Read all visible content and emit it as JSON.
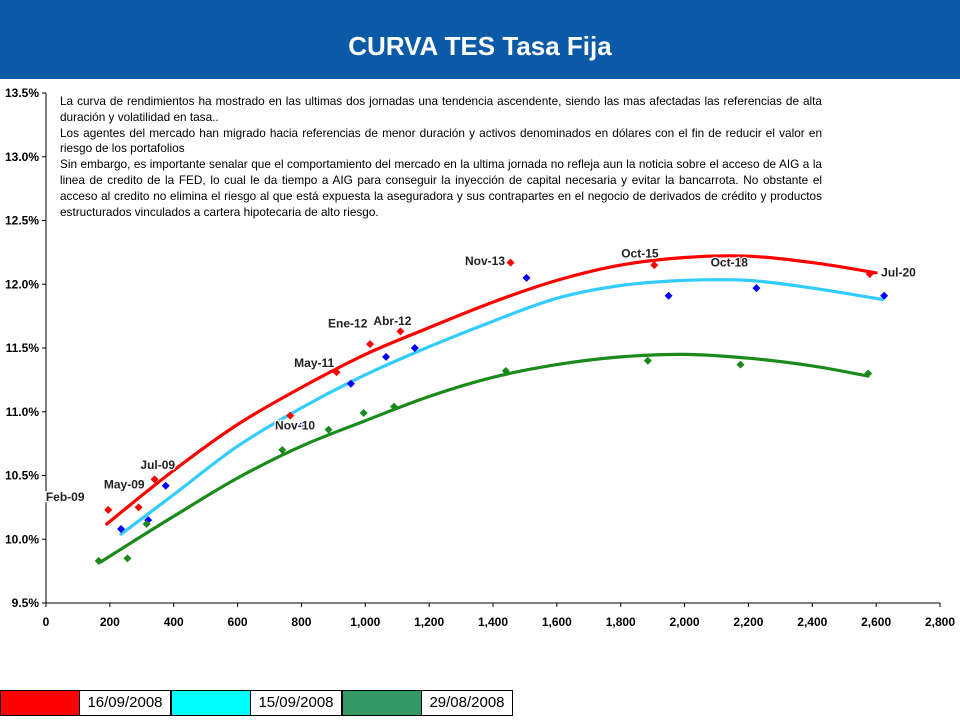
{
  "header": {
    "title": "CURVA TES Tasa Fija"
  },
  "note": {
    "paragraphs": [
      "La curva de rendimientos ha mostrado en las ultimas dos jornadas una tendencia ascendente, siendo las mas afectadas las referencias de alta duración y volatilidad en tasa..",
      "Los agentes del mercado han migrado hacia referencias de menor duración y activos denominados en dólares con el fin de reducir el valor en riesgo de los portafolios",
      "Sin embargo, es importante senalar que el comportamiento del mercado en la ultima jornada no refleja aun la noticia sobre el acceso de AIG a la linea de credito de la FED, lo cual le da tiempo a AIG para conseguir la inyección de capital necesaria y evitar la bancarrota. No obstante el acceso al credito no elimina el riesgo al que está expuesta la aseguradora y sus contrapartes en el negocio de derivados de crédito y productos estructurados vinculados a cartera hipotecaria de alto riesgo."
    ]
  },
  "legend": [
    {
      "label": "16/09/2008",
      "color": "#ff0000"
    },
    {
      "label": "15/09/2008",
      "color": "#00ffff"
    },
    {
      "label": "29/08/2008",
      "color": "#339966"
    }
  ],
  "chart_data": {
    "type": "scatter",
    "xlim": [
      0,
      2800
    ],
    "ylim": [
      9.5,
      13.5
    ],
    "x_ticks": [
      "0",
      "200",
      "400",
      "600",
      "800",
      "1,000",
      "1,200",
      "1,400",
      "1,600",
      "1,800",
      "2,000",
      "2,200",
      "2,400",
      "2,600",
      "2,800"
    ],
    "y_ticks": [
      "9.5%",
      "10.0%",
      "10.5%",
      "11.0%",
      "11.5%",
      "12.0%",
      "12.5%",
      "13.0%",
      "13.5%"
    ],
    "grid": false,
    "series": [
      {
        "name": "16/09/2008",
        "color": "#ff0000",
        "marker_color": "#ff0000",
        "x": [
          195,
          290,
          340,
          765,
          910,
          1015,
          1110,
          1455,
          1905,
          2175,
          2580
        ],
        "y": [
          10.23,
          10.25,
          10.47,
          10.97,
          11.31,
          11.53,
          11.63,
          12.17,
          12.15,
          12.2,
          12.08
        ],
        "curve": {
          "x": [
            190,
            400,
            600,
            800,
            1000,
            1200,
            1400,
            1600,
            1800,
            2000,
            2200,
            2400,
            2600
          ],
          "y": [
            10.12,
            10.54,
            10.9,
            11.19,
            11.45,
            11.66,
            11.86,
            12.03,
            12.15,
            12.21,
            12.22,
            12.17,
            12.09
          ]
        }
      },
      {
        "name": "15/09/2008",
        "color": "#33ccff",
        "marker_color": "#0000ff",
        "x": [
          235,
          320,
          375,
          805,
          955,
          1065,
          1155,
          1505,
          1950,
          2225,
          2625
        ],
        "y": [
          10.08,
          10.15,
          10.42,
          10.9,
          11.22,
          11.43,
          11.5,
          12.05,
          11.91,
          11.97,
          11.91
        ],
        "curve": {
          "x": [
            235,
            400,
            600,
            800,
            1000,
            1200,
            1400,
            1600,
            1800,
            2000,
            2200,
            2400,
            2620
          ],
          "y": [
            10.04,
            10.35,
            10.73,
            11.03,
            11.29,
            11.51,
            11.71,
            11.89,
            11.99,
            12.03,
            12.03,
            11.97,
            11.88
          ]
        }
      },
      {
        "name": "29/08/2008",
        "color": "#1a8a1a",
        "marker_color": "#1a8a1a",
        "x": [
          165,
          255,
          315,
          740,
          885,
          995,
          1090,
          1440,
          1885,
          2175,
          2575
        ],
        "y": [
          9.83,
          9.85,
          10.12,
          10.7,
          10.86,
          10.99,
          11.04,
          11.32,
          11.4,
          11.37,
          11.3
        ],
        "curve": {
          "x": [
            170,
            400,
            600,
            800,
            1000,
            1200,
            1400,
            1600,
            1800,
            2000,
            2200,
            2400,
            2575
          ],
          "y": [
            9.82,
            10.18,
            10.48,
            10.73,
            10.93,
            11.12,
            11.27,
            11.37,
            11.43,
            11.45,
            11.42,
            11.36,
            11.28
          ]
        }
      }
    ],
    "annotations": [
      {
        "text": "Feb-09",
        "x": 60,
        "y": 10.3
      },
      {
        "text": "May-09",
        "x": 245,
        "y": 10.4
      },
      {
        "text": "Jul-09",
        "x": 350,
        "y": 10.55
      },
      {
        "text": "Nov-10",
        "x": 780,
        "y": 10.86
      },
      {
        "text": "May-11",
        "x": 840,
        "y": 11.35
      },
      {
        "text": "Ene-12",
        "x": 945,
        "y": 11.66
      },
      {
        "text": "Abr-12",
        "x": 1085,
        "y": 11.68
      },
      {
        "text": "Nov-13",
        "x": 1375,
        "y": 12.15
      },
      {
        "text": "Oct-15",
        "x": 1860,
        "y": 12.21
      },
      {
        "text": "Oct-18",
        "x": 2140,
        "y": 12.14
      },
      {
        "text": "Jul-20",
        "x": 2670,
        "y": 12.06
      }
    ]
  }
}
